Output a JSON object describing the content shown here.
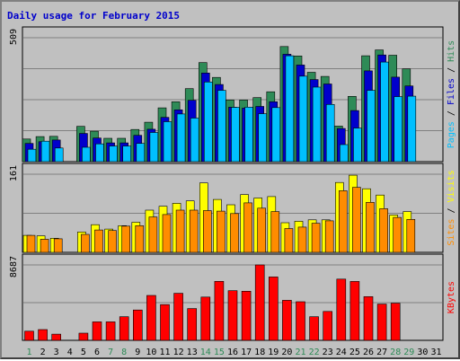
{
  "chart_data": {
    "type": "bar",
    "title": "Daily usage for February 2015",
    "x": [
      "1",
      "2",
      "3",
      "4",
      "5",
      "6",
      "7",
      "8",
      "9",
      "10",
      "11",
      "12",
      "13",
      "14",
      "15",
      "16",
      "17",
      "18",
      "19",
      "20",
      "21",
      "22",
      "23",
      "24",
      "25",
      "26",
      "27",
      "28",
      "29",
      "30",
      "31"
    ],
    "weekend_days": [
      "1",
      "7",
      "8",
      "14",
      "15",
      "21",
      "22",
      "28",
      "29"
    ],
    "colors": {
      "hits": "#2e8b57",
      "files": "#0000cc",
      "pages": "#00bfff",
      "visits": "#ffff00",
      "sites": "#ff8c00",
      "kbytes": "#ff0000",
      "weekday_label": "#000000",
      "weekend_label": "#2e8b57",
      "title": "#0000cc",
      "grid": "#808080",
      "panel_bg": "#c0c0c0"
    },
    "panels": [
      {
        "id": "hits-files-pages",
        "ymax": 509,
        "ymax_label": "509",
        "legend": [
          "Pages",
          "Files",
          "Hits"
        ],
        "legend_colors": [
          "#00bfff",
          "#0000cc",
          "#2e8b57"
        ],
        "series": [
          {
            "name": "Hits",
            "color": "#2e8b57",
            "values": [
              93,
              103,
              104,
              0,
              145,
              125,
              96,
              96,
              132,
              162,
              221,
              246,
              300,
              407,
              346,
              253,
              253,
              263,
              287,
              473,
              434,
              367,
              350,
              146,
              268,
              435,
              459,
              437,
              381,
              0,
              0
            ]
          },
          {
            "name": "Files",
            "color": "#0000cc",
            "values": [
              75,
              82,
              89,
              0,
              116,
              97,
              77,
              77,
              108,
              133,
              182,
              213,
              252,
              364,
              317,
              224,
              220,
              227,
              246,
              441,
              397,
              337,
              319,
              136,
              210,
              373,
              438,
              347,
              311,
              0,
              0
            ]
          },
          {
            "name": "Pages",
            "color": "#00bfff",
            "values": [
              51,
              84,
              56,
              0,
              59,
              73,
              64,
              64,
              75,
              120,
              164,
              196,
              179,
              327,
              293,
              223,
              224,
              197,
              222,
              435,
              351,
              306,
              235,
              70,
              138,
              293,
              409,
              267,
              269,
              0,
              0
            ]
          }
        ]
      },
      {
        "id": "visits-sites",
        "ymax": 161,
        "ymax_label": "161",
        "legend": [
          "Sites",
          "Visits"
        ],
        "legend_colors": [
          "#ff8c00",
          "#ffff00"
        ],
        "series": [
          {
            "name": "Visits",
            "color": "#ffff00",
            "values": [
              35,
              34,
              29,
              0,
              42,
              57,
              48,
              55,
              62,
              87,
              95,
              101,
              106,
              143,
              109,
              98,
              119,
              112,
              115,
              61,
              64,
              67,
              67,
              144,
              159,
              131,
              118,
              77,
              84,
              0,
              0
            ]
          },
          {
            "name": "Sites",
            "color": "#ff8c00",
            "values": [
              35,
              27,
              28,
              0,
              37,
              46,
              45,
              54,
              55,
              73,
              78,
              87,
              87,
              86,
              85,
              80,
              102,
              91,
              84,
              49,
              52,
              60,
              65,
              127,
              134,
              103,
              90,
              72,
              68,
              0,
              0
            ]
          }
        ]
      },
      {
        "id": "kbytes",
        "ymax": 8687,
        "ymax_label": "8687",
        "legend": [
          "KBytes"
        ],
        "legend_colors": [
          "#ff0000"
        ],
        "series": [
          {
            "name": "KBytes",
            "color": "#ff0000",
            "values": [
              1052,
              1245,
              710,
              0,
              830,
              2129,
              2135,
              2716,
              3497,
              5175,
              4111,
              5422,
              3658,
              4982,
              6793,
              5724,
              5656,
              8687,
              7297,
              4612,
              4442,
              2720,
              3331,
              7053,
              6783,
              5037,
              4181,
              4283,
              0,
              0,
              0
            ]
          }
        ]
      }
    ]
  }
}
